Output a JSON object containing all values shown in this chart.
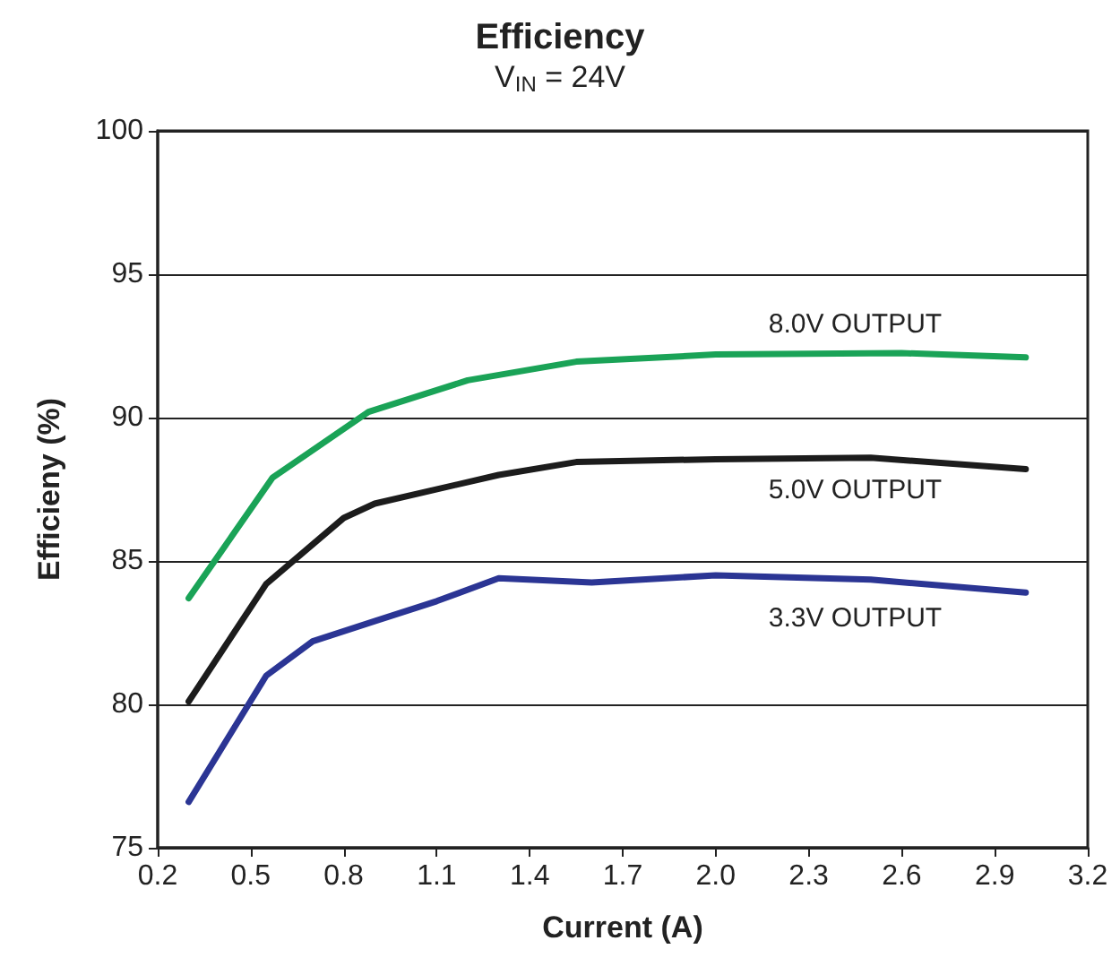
{
  "chart_data": {
    "type": "line",
    "title": "Efficiency",
    "subtitle": "V$_{IN}$ = 24V",
    "xlabel": "Current (A)",
    "ylabel": "Efficieny (%)",
    "xlim": [
      0.2,
      3.2
    ],
    "xticks": [
      0.2,
      0.5,
      0.8,
      1.1,
      1.4,
      1.7,
      {
        "value": 2,
        "label": "2.0"
      },
      2.3,
      2.6,
      2.9,
      3.2
    ],
    "ylim": [
      75,
      100
    ],
    "yticks": [
      75,
      80,
      85,
      90,
      95,
      100
    ],
    "grid": "y",
    "legend": false,
    "marker": "none",
    "line_style": "solid",
    "series": [
      {
        "name": "8.0V OUTPUT",
        "color": "#1aa357",
        "x": [
          0.3,
          0.57,
          0.88,
          1.2,
          1.55,
          2.0,
          2.6,
          3.0
        ],
        "values": [
          83.7,
          87.9,
          90.2,
          91.3,
          91.95,
          92.2,
          92.25,
          92.1
        ]
      },
      {
        "name": "5.0V OUTPUT",
        "color": "#1c1c1c",
        "x": [
          0.3,
          0.55,
          0.8,
          0.9,
          1.3,
          1.55,
          2.0,
          2.5,
          3.0
        ],
        "values": [
          80.1,
          84.2,
          86.5,
          87.0,
          88.0,
          88.45,
          88.55,
          88.6,
          88.2
        ]
      },
      {
        "name": "3.3V OUTPUT",
        "color": "#2b3594",
        "x": [
          0.3,
          0.55,
          0.7,
          0.9,
          1.1,
          1.3,
          1.6,
          2.0,
          2.5,
          3.0
        ],
        "values": [
          76.6,
          81.0,
          82.2,
          82.9,
          83.6,
          84.4,
          84.25,
          84.5,
          84.35,
          83.9
        ]
      }
    ]
  }
}
